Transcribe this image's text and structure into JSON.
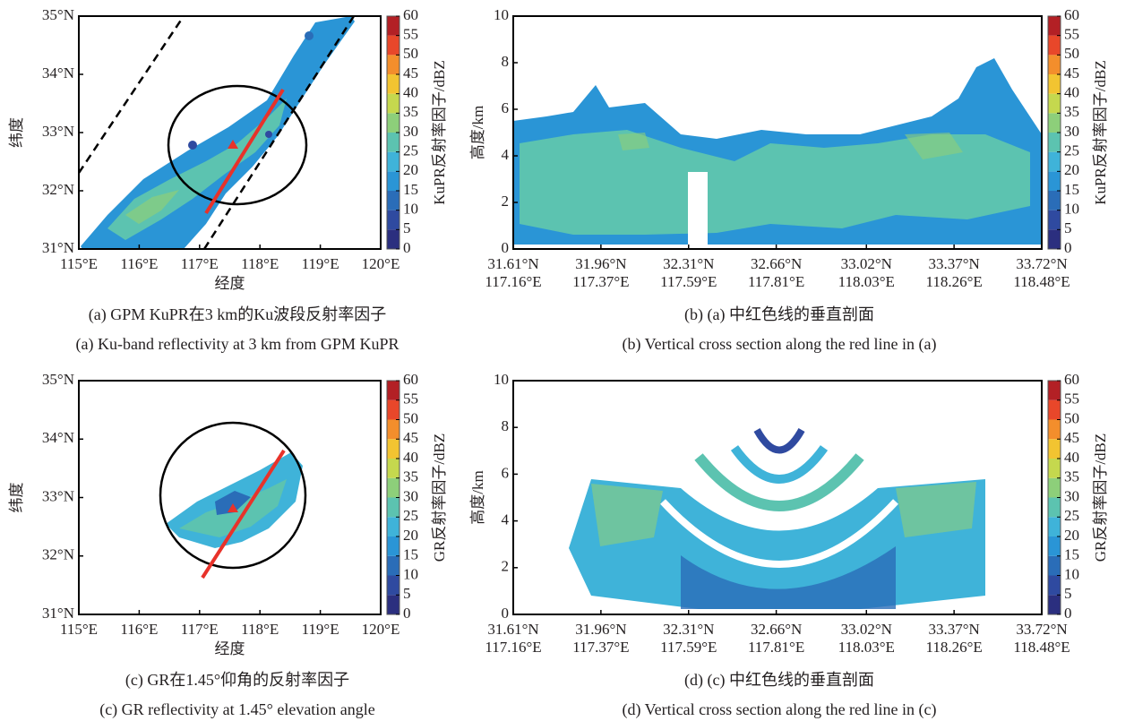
{
  "chart_data": [
    {
      "type": "map",
      "xlabel": "经度",
      "ylabel": "纬度",
      "xlim": [
        115,
        120
      ],
      "ylim": [
        31,
        35
      ],
      "xticks": [
        {
          "value": 115,
          "label": "115°E"
        },
        {
          "value": 116,
          "label": "116°E"
        },
        {
          "value": 117,
          "label": "117°E"
        },
        {
          "value": 118,
          "label": "118°E"
        },
        {
          "value": 119,
          "label": "119°E"
        },
        {
          "value": 120,
          "label": "120°E"
        }
      ],
      "yticks": [
        {
          "value": 31,
          "label": "31°N"
        },
        {
          "value": 32,
          "label": "32°N"
        },
        {
          "value": 33,
          "label": "33°N"
        },
        {
          "value": 34,
          "label": "34°N"
        },
        {
          "value": 35,
          "label": "35°N"
        }
      ],
      "colorbar": {
        "label": "KuPR反射率因子/dBZ",
        "lim": [
          0,
          60
        ],
        "ticks": [
          0,
          5,
          10,
          15,
          20,
          25,
          30,
          35,
          40,
          45,
          50,
          55,
          60
        ],
        "colors": [
          "#2b2f7f",
          "#2f4aa0",
          "#2a6db8",
          "#2a95d6",
          "#3fb3d9",
          "#5cc3b0",
          "#8dcf7a",
          "#c5d84e",
          "#f2c431",
          "#f38e2c",
          "#e8472a",
          "#b32025"
        ]
      },
      "caption_zh": "(a) GPM KuPR在3 km的Ku波段反射率因子",
      "caption_en": "(a) Ku-band reflectivity at 3 km from GPM KuPR"
    },
    {
      "type": "section",
      "ylabel": "高度/km",
      "xlim": [
        31.61,
        33.72
      ],
      "ylim": [
        0,
        10
      ],
      "xticks": [
        {
          "value": 31.61,
          "label": "31.61°N"
        },
        {
          "value": 31.96,
          "label": "31.96°N"
        },
        {
          "value": 32.31,
          "label": "32.31°N"
        },
        {
          "value": 32.66,
          "label": "32.66°N"
        },
        {
          "value": 33.02,
          "label": "33.02°N"
        },
        {
          "value": 33.37,
          "label": "33.37°N"
        },
        {
          "value": 33.72,
          "label": "33.72°N"
        }
      ],
      "xtick_sublabels": [
        "117.16°E",
        "117.37°E",
        "117.59°E",
        "117.81°E",
        "118.03°E",
        "118.26°E",
        "118.48°E"
      ],
      "yticks": [
        0,
        2,
        4,
        6,
        8,
        10
      ],
      "colorbar": {
        "label": "KuPR反射率因子/dBZ",
        "lim": [
          0,
          60
        ],
        "ticks": [
          0,
          5,
          10,
          15,
          20,
          25,
          30,
          35,
          40,
          45,
          50,
          55,
          60
        ],
        "colors": [
          "#2b2f7f",
          "#2f4aa0",
          "#2a6db8",
          "#2a95d6",
          "#3fb3d9",
          "#5cc3b0",
          "#8dcf7a",
          "#c5d84e",
          "#f2c431",
          "#f38e2c",
          "#e8472a",
          "#b32025"
        ]
      },
      "caption_zh": "(b) (a) 中红色线的垂直剖面",
      "caption_en": "(b) Vertical cross section along the red line in (a)"
    },
    {
      "type": "map",
      "xlabel": "经度",
      "ylabel": "纬度",
      "xlim": [
        115,
        120
      ],
      "ylim": [
        31,
        35
      ],
      "xticks": [
        {
          "value": 115,
          "label": "115°E"
        },
        {
          "value": 116,
          "label": "116°E"
        },
        {
          "value": 117,
          "label": "117°E"
        },
        {
          "value": 118,
          "label": "118°E"
        },
        {
          "value": 119,
          "label": "119°E"
        },
        {
          "value": 120,
          "label": "120°E"
        }
      ],
      "yticks": [
        {
          "value": 31,
          "label": "31°N"
        },
        {
          "value": 32,
          "label": "32°N"
        },
        {
          "value": 33,
          "label": "33°N"
        },
        {
          "value": 34,
          "label": "34°N"
        },
        {
          "value": 35,
          "label": "35°N"
        }
      ],
      "colorbar": {
        "label": "GR反射率因子/dBZ",
        "lim": [
          0,
          60
        ],
        "ticks": [
          0,
          5,
          10,
          15,
          20,
          25,
          30,
          35,
          40,
          45,
          50,
          55,
          60
        ],
        "colors": [
          "#2b2f7f",
          "#2f4aa0",
          "#2a6db8",
          "#2a95d6",
          "#3fb3d9",
          "#5cc3b0",
          "#8dcf7a",
          "#c5d84e",
          "#f2c431",
          "#f38e2c",
          "#e8472a",
          "#b32025"
        ]
      },
      "caption_zh": "(c) GR在1.45°仰角的反射率因子",
      "caption_en": "(c) GR reflectivity at 1.45° elevation angle"
    },
    {
      "type": "section",
      "ylabel": "高度/km",
      "xlim": [
        31.61,
        33.72
      ],
      "ylim": [
        0,
        10
      ],
      "xticks": [
        {
          "value": 31.61,
          "label": "31.61°N"
        },
        {
          "value": 31.96,
          "label": "31.96°N"
        },
        {
          "value": 32.31,
          "label": "32.31°N"
        },
        {
          "value": 32.66,
          "label": "32.66°N"
        },
        {
          "value": 33.02,
          "label": "33.02°N"
        },
        {
          "value": 33.37,
          "label": "33.37°N"
        },
        {
          "value": 33.72,
          "label": "33.72°N"
        }
      ],
      "xtick_sublabels": [
        "117.16°E",
        "117.37°E",
        "117.59°E",
        "117.81°E",
        "118.03°E",
        "118.26°E",
        "118.48°E"
      ],
      "yticks": [
        0,
        2,
        4,
        6,
        8,
        10
      ],
      "colorbar": {
        "label": "GR反射率因子/dBZ",
        "lim": [
          0,
          60
        ],
        "ticks": [
          0,
          5,
          10,
          15,
          20,
          25,
          30,
          35,
          40,
          45,
          50,
          55,
          60
        ],
        "colors": [
          "#2b2f7f",
          "#2f4aa0",
          "#2a6db8",
          "#2a95d6",
          "#3fb3d9",
          "#5cc3b0",
          "#8dcf7a",
          "#c5d84e",
          "#f2c431",
          "#f38e2c",
          "#e8472a",
          "#b32025"
        ]
      },
      "caption_zh": "(d) (c) 中红色线的垂直剖面",
      "caption_en": "(d) Vertical cross section along the red line in (c)"
    }
  ]
}
